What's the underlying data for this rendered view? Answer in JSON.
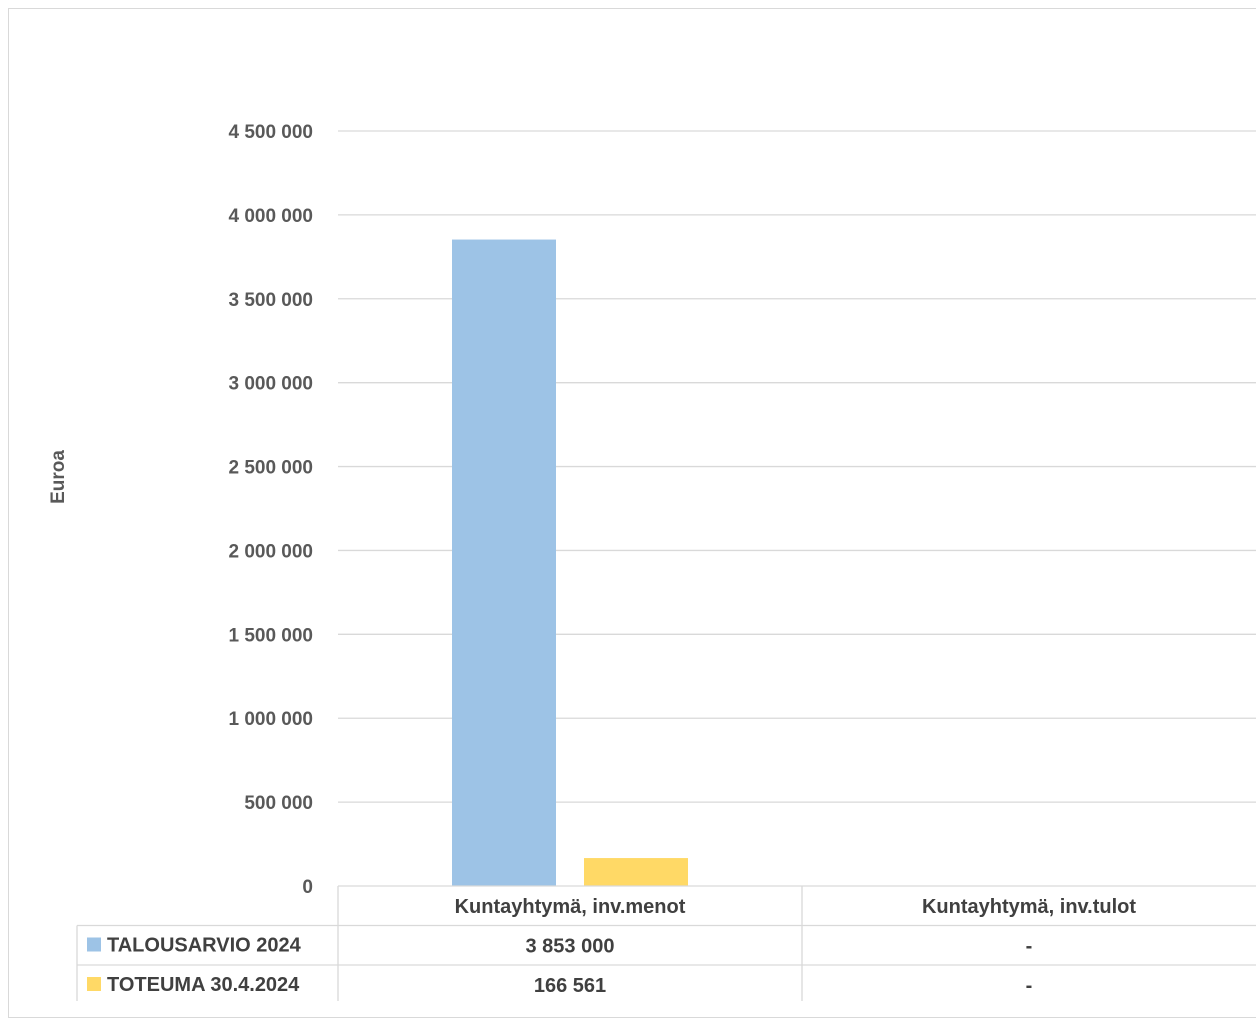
{
  "chart_data": {
    "type": "bar",
    "ylabel": "Euroa",
    "ylim": [
      0,
      4500000
    ],
    "yticks": [
      0,
      500000,
      1000000,
      1500000,
      2000000,
      2500000,
      3000000,
      3500000,
      4000000,
      4500000
    ],
    "ytick_labels": [
      "0",
      "500 000",
      "1 000 000",
      "1 500 000",
      "2 000 000",
      "2 500 000",
      "3 000 000",
      "3 500 000",
      "4 000 000",
      "4 500 000"
    ],
    "categories": [
      "Kuntayhtymä, inv.menot",
      "Kuntayhtymä, inv.tulot"
    ],
    "series": [
      {
        "name": "TALOUSARVIO 2024",
        "color": "#9dc3e6",
        "values": [
          3853000,
          0
        ],
        "labels": [
          "3 853 000",
          "-"
        ]
      },
      {
        "name": "TOTEUMA 30.4.2024",
        "color": "#ffd966",
        "values": [
          166561,
          0
        ],
        "labels": [
          "166 561",
          "-"
        ]
      }
    ],
    "grid": true,
    "legend": "data-table"
  }
}
